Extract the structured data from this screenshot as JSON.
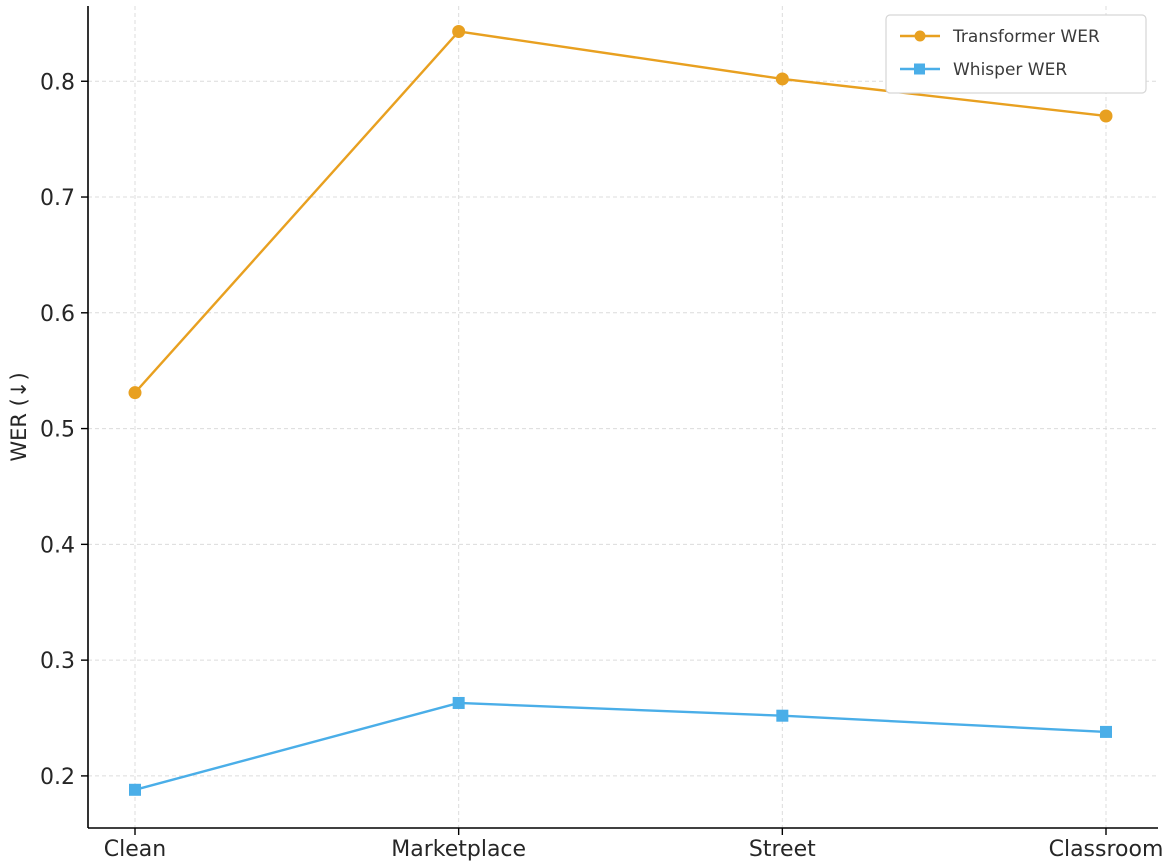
{
  "chart_data": {
    "type": "line",
    "categories": [
      "Clean",
      "Marketplace",
      "Street",
      "Classroom"
    ],
    "series": [
      {
        "name": "Transformer WER",
        "values": [
          0.531,
          0.843,
          0.802,
          0.77
        ],
        "color": "#E8A020",
        "marker": "circle"
      },
      {
        "name": "Whisper WER",
        "values": [
          0.188,
          0.263,
          0.252,
          0.238
        ],
        "color": "#4AAEE8",
        "marker": "square"
      }
    ],
    "title": "",
    "xlabel": "",
    "ylabel": "WER (↓)",
    "ylim": [
      0.155,
      0.865
    ],
    "yticks": [
      "0.2",
      "0.3",
      "0.4",
      "0.5",
      "0.6",
      "0.7",
      "0.8"
    ],
    "grid": true,
    "legend_position": "top-right"
  }
}
